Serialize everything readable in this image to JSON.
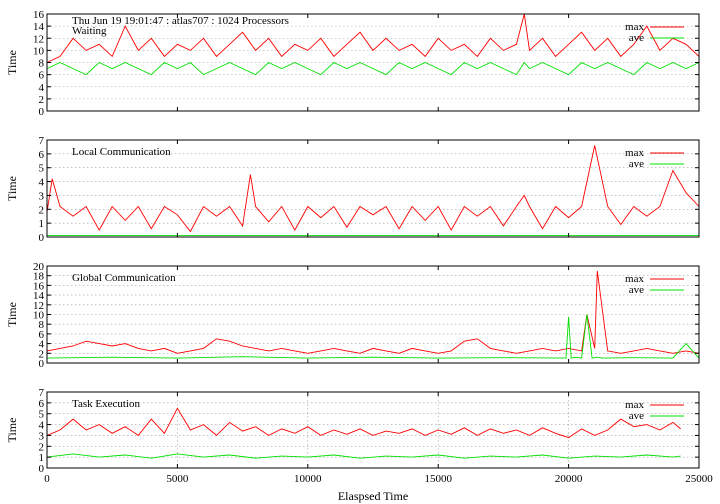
{
  "chart_data": {
    "type": "line",
    "header": "Thu Jun 19 19:01:47 : atlas707 : 1024 Processors",
    "xlabel": "Elaspsed Time",
    "xlim": [
      0,
      25000
    ],
    "xticks": [
      0,
      5000,
      10000,
      15000,
      20000,
      25000
    ],
    "colors": {
      "max": "#ff0000",
      "ave": "#00e000"
    },
    "panels": [
      {
        "label": "Waiting",
        "ylabel": "Time",
        "ylim": [
          0,
          16
        ],
        "yticks": [
          0,
          2,
          4,
          6,
          8,
          10,
          12,
          14,
          16
        ],
        "grid": true,
        "legend_position": "top-right",
        "series": [
          {
            "name": "max",
            "color": "#ff0000",
            "x": [
              0,
              500,
              1000,
              1500,
              2000,
              2500,
              3000,
              3500,
              4000,
              4500,
              5000,
              5500,
              6000,
              6500,
              7000,
              7500,
              8000,
              8500,
              9000,
              9500,
              10000,
              10500,
              11000,
              11500,
              12000,
              12500,
              13000,
              13500,
              14000,
              14500,
              15000,
              15500,
              16000,
              16500,
              17000,
              17500,
              18000,
              18300,
              18500,
              19000,
              19500,
              20000,
              20500,
              21000,
              21500,
              22000,
              22500,
              23000,
              23500,
              24000,
              24500,
              25000
            ],
            "y": [
              8,
              9,
              12,
              10,
              11,
              9,
              14,
              10,
              12,
              9,
              11,
              10,
              12,
              9,
              11,
              13,
              10,
              12,
              9,
              11,
              10,
              12,
              9,
              11,
              13,
              10,
              12,
              10,
              11,
              9,
              12,
              10,
              11,
              9,
              12,
              10,
              11,
              16,
              10,
              12,
              9,
              11,
              13,
              10,
              12,
              9,
              11,
              14,
              10,
              12,
              11,
              9
            ]
          },
          {
            "name": "ave",
            "color": "#00e000",
            "x": [
              0,
              500,
              1000,
              1500,
              2000,
              2500,
              3000,
              3500,
              4000,
              4500,
              5000,
              5500,
              6000,
              6500,
              7000,
              7500,
              8000,
              8500,
              9000,
              9500,
              10000,
              10500,
              11000,
              11500,
              12000,
              12500,
              13000,
              13500,
              14000,
              14500,
              15000,
              15500,
              16000,
              16500,
              17000,
              17500,
              18000,
              18300,
              18500,
              19000,
              19500,
              20000,
              20500,
              21000,
              21500,
              22000,
              22500,
              23000,
              23500,
              24000,
              24500,
              25000
            ],
            "y": [
              7,
              8,
              7,
              6,
              8,
              7,
              8,
              7,
              6,
              8,
              7,
              8,
              6,
              7,
              8,
              7,
              6,
              8,
              7,
              8,
              7,
              6,
              8,
              7,
              8,
              7,
              6,
              8,
              7,
              8,
              7,
              6,
              8,
              7,
              8,
              7,
              6,
              8,
              7,
              8,
              7,
              6,
              8,
              7,
              8,
              7,
              6,
              8,
              7,
              8,
              7,
              8
            ]
          }
        ]
      },
      {
        "label": "Local Communication",
        "ylabel": "Time",
        "ylim": [
          0,
          7
        ],
        "yticks": [
          0,
          1,
          2,
          3,
          4,
          5,
          6,
          7
        ],
        "grid": true,
        "legend_position": "top-right",
        "series": [
          {
            "name": "max",
            "color": "#ff0000",
            "x": [
              0,
              200,
              500,
              1000,
              1500,
              2000,
              2500,
              3000,
              3500,
              4000,
              4500,
              5000,
              5500,
              6000,
              6500,
              7000,
              7500,
              7800,
              8000,
              8500,
              9000,
              9500,
              10000,
              10500,
              11000,
              11500,
              12000,
              12500,
              13000,
              13500,
              14000,
              14500,
              15000,
              15500,
              16000,
              16500,
              17000,
              17500,
              18000,
              18300,
              18500,
              19000,
              19500,
              20000,
              20500,
              21000,
              21500,
              22000,
              22500,
              23000,
              23500,
              24000,
              24500,
              25000
            ],
            "y": [
              1.8,
              4.2,
              2.2,
              1.5,
              2.2,
              0.5,
              2.2,
              1.2,
              2.2,
              0.6,
              2.2,
              1.6,
              0.4,
              2.2,
              1.5,
              2.2,
              0.8,
              4.5,
              2.2,
              1.1,
              2.2,
              0.5,
              2.2,
              1.4,
              2.2,
              0.7,
              2.2,
              1.6,
              2.2,
              0.6,
              2.2,
              1.2,
              2.2,
              0.5,
              2.2,
              1.5,
              2.2,
              0.8,
              2.2,
              3.0,
              2.2,
              0.6,
              2.2,
              1.4,
              2.2,
              6.6,
              2.2,
              0.9,
              2.2,
              1.5,
              2.2,
              4.8,
              3.2,
              2.2
            ]
          },
          {
            "name": "ave",
            "color": "#00e000",
            "x": [
              0,
              2500,
              5000,
              7500,
              10000,
              12500,
              15000,
              17500,
              20000,
              22500,
              25000
            ],
            "y": [
              0.1,
              0.1,
              0.1,
              0.1,
              0.1,
              0.1,
              0.1,
              0.1,
              0.1,
              0.1,
              0.1
            ]
          }
        ]
      },
      {
        "label": "Global Communication",
        "ylabel": "Time",
        "ylim": [
          0,
          20
        ],
        "yticks": [
          0,
          2,
          4,
          6,
          8,
          10,
          12,
          14,
          16,
          18,
          20
        ],
        "grid": true,
        "legend_position": "top-right",
        "series": [
          {
            "name": "max",
            "color": "#ff0000",
            "x": [
              0,
              500,
              1000,
              1500,
              2000,
              2500,
              3000,
              3500,
              4000,
              4500,
              5000,
              5500,
              6000,
              6500,
              7000,
              7500,
              8000,
              8500,
              9000,
              9500,
              10000,
              10500,
              11000,
              11500,
              12000,
              12500,
              13000,
              13500,
              14000,
              14500,
              15000,
              15500,
              16000,
              16500,
              17000,
              17500,
              18000,
              18500,
              19000,
              19500,
              20000,
              20500,
              20700,
              21000,
              21100,
              21500,
              22000,
              22500,
              23000,
              23500,
              24000,
              24500,
              25000
            ],
            "y": [
              2.5,
              3.0,
              3.5,
              4.5,
              4.0,
              3.5,
              4.0,
              3.0,
              2.5,
              3.0,
              2.0,
              2.5,
              3.0,
              5.0,
              4.5,
              3.5,
              3.0,
              2.5,
              3.0,
              2.5,
              2.0,
              2.5,
              3.0,
              2.5,
              2.0,
              3.0,
              2.5,
              2.0,
              3.0,
              2.5,
              2.0,
              2.5,
              4.5,
              5.0,
              3.0,
              2.5,
              2.0,
              2.5,
              3.0,
              2.5,
              3.0,
              2.5,
              10.0,
              3.0,
              19.0,
              2.5,
              2.0,
              2.5,
              3.0,
              2.5,
              2.0,
              2.5,
              2.0
            ]
          },
          {
            "name": "ave",
            "color": "#00e000",
            "x": [
              0,
              2500,
              5000,
              7500,
              10000,
              12500,
              15000,
              17500,
              19900,
              20000,
              20100,
              20300,
              20500,
              20700,
              20900,
              21100,
              21300,
              22500,
              24000,
              24500,
              25000
            ],
            "y": [
              1.0,
              1.2,
              1.0,
              1.3,
              1.0,
              1.2,
              1.0,
              1.1,
              1.0,
              9.5,
              1.0,
              1.2,
              1.0,
              10.0,
              1.0,
              1.2,
              1.0,
              1.1,
              1.0,
              4.0,
              1.0
            ]
          }
        ]
      },
      {
        "label": "Task Execution",
        "ylabel": "Time",
        "ylim": [
          0,
          7
        ],
        "yticks": [
          0,
          1,
          2,
          3,
          4,
          5,
          6,
          7
        ],
        "grid": true,
        "legend_position": "top-right",
        "series": [
          {
            "name": "max",
            "color": "#ff0000",
            "x": [
              0,
              500,
              1000,
              1500,
              2000,
              2500,
              3000,
              3500,
              4000,
              4500,
              5000,
              5500,
              6000,
              6500,
              7000,
              7500,
              8000,
              8500,
              9000,
              9500,
              10000,
              10500,
              11000,
              11500,
              12000,
              12500,
              13000,
              13500,
              14000,
              14500,
              15000,
              15500,
              16000,
              16500,
              17000,
              17500,
              18000,
              18500,
              19000,
              19500,
              20000,
              20500,
              21000,
              21500,
              22000,
              22500,
              23000,
              23500,
              24000,
              24300
            ],
            "y": [
              3.0,
              3.5,
              4.5,
              3.5,
              4.0,
              3.2,
              3.8,
              3.0,
              4.5,
              3.2,
              5.5,
              3.5,
              4.0,
              3.0,
              4.2,
              3.4,
              3.8,
              3.0,
              3.6,
              3.2,
              3.8,
              3.0,
              3.5,
              3.1,
              3.6,
              3.0,
              3.4,
              3.2,
              3.6,
              3.0,
              3.5,
              3.1,
              3.7,
              3.0,
              3.6,
              3.2,
              3.5,
              3.0,
              3.7,
              3.2,
              2.8,
              3.6,
              3.0,
              3.5,
              4.5,
              3.8,
              4.0,
              3.5,
              4.2,
              3.6
            ]
          },
          {
            "name": "ave",
            "color": "#00e000",
            "x": [
              0,
              1000,
              2000,
              3000,
              4000,
              5000,
              6000,
              7000,
              8000,
              9000,
              10000,
              11000,
              12000,
              13000,
              14000,
              15000,
              16000,
              17000,
              18000,
              19000,
              20000,
              21000,
              22000,
              23000,
              24000,
              24300
            ],
            "y": [
              1.0,
              1.3,
              1.0,
              1.2,
              0.9,
              1.3,
              1.0,
              1.2,
              0.9,
              1.1,
              1.0,
              1.2,
              0.9,
              1.1,
              1.0,
              1.2,
              0.9,
              1.1,
              1.0,
              1.2,
              0.9,
              1.1,
              1.0,
              1.2,
              1.0,
              1.1
            ]
          }
        ]
      }
    ]
  }
}
